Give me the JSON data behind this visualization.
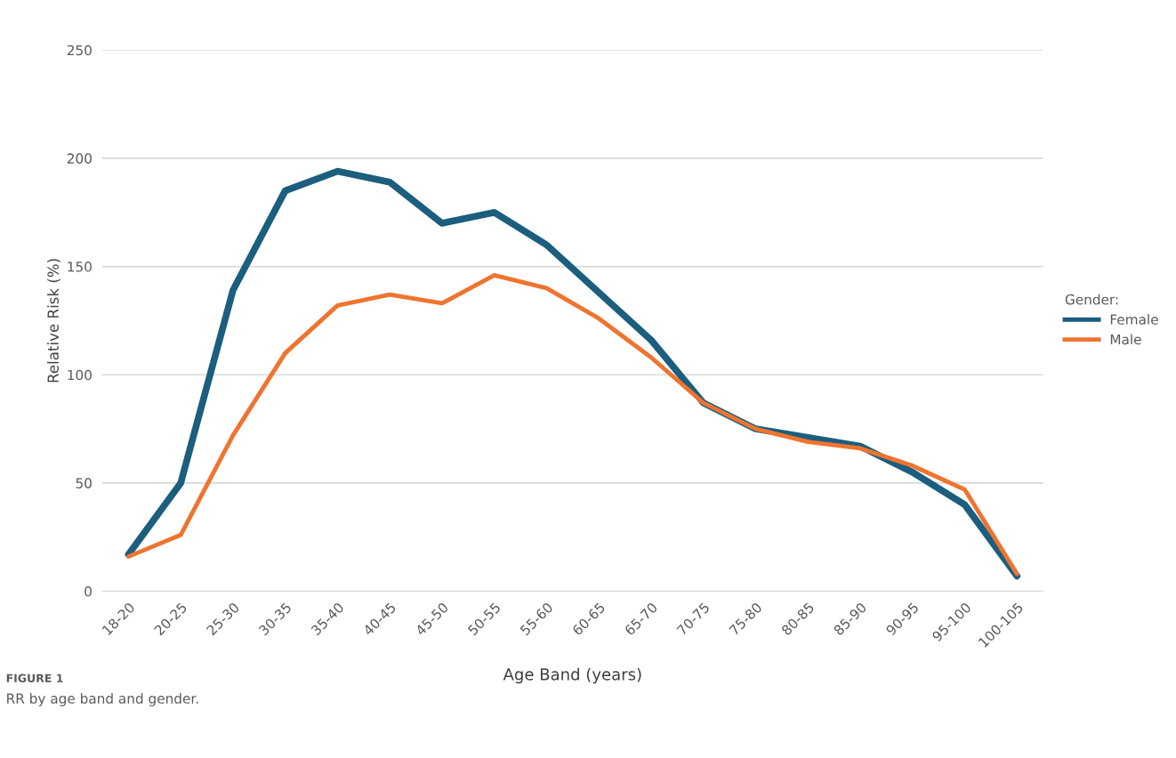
{
  "chart_data": {
    "type": "line",
    "xlabel": "Age Band (years)",
    "ylabel": "Relative Risk (%)",
    "legend_title": "Gender:",
    "categories": [
      "18-20",
      "20-25",
      "25-30",
      "30-35",
      "35-40",
      "40-45",
      "45-50",
      "50-55",
      "55-60",
      "60-65",
      "65-70",
      "70-75",
      "75-80",
      "80-85",
      "85-90",
      "90-95",
      "95-100",
      "100-105"
    ],
    "series": [
      {
        "name": "Female",
        "color": "#1b5e7e",
        "values": [
          17,
          50,
          139,
          185,
          194,
          189,
          170,
          175,
          160,
          138,
          116,
          87,
          75,
          71,
          67,
          55,
          40,
          7
        ]
      },
      {
        "name": "Male",
        "color": "#ee7430",
        "values": [
          16,
          26,
          72,
          110,
          132,
          137,
          133,
          146,
          140,
          126,
          108,
          87,
          75,
          69,
          66,
          58,
          47,
          8
        ]
      }
    ],
    "ylim": [
      0,
      250
    ],
    "yticks": [
      0,
      50,
      100,
      150,
      200,
      250
    ],
    "grid": "y",
    "legend": "right",
    "marker": "none",
    "line_style": "solid",
    "annotations": [
      "FIGURE 1",
      "RR by age band and gender."
    ]
  }
}
